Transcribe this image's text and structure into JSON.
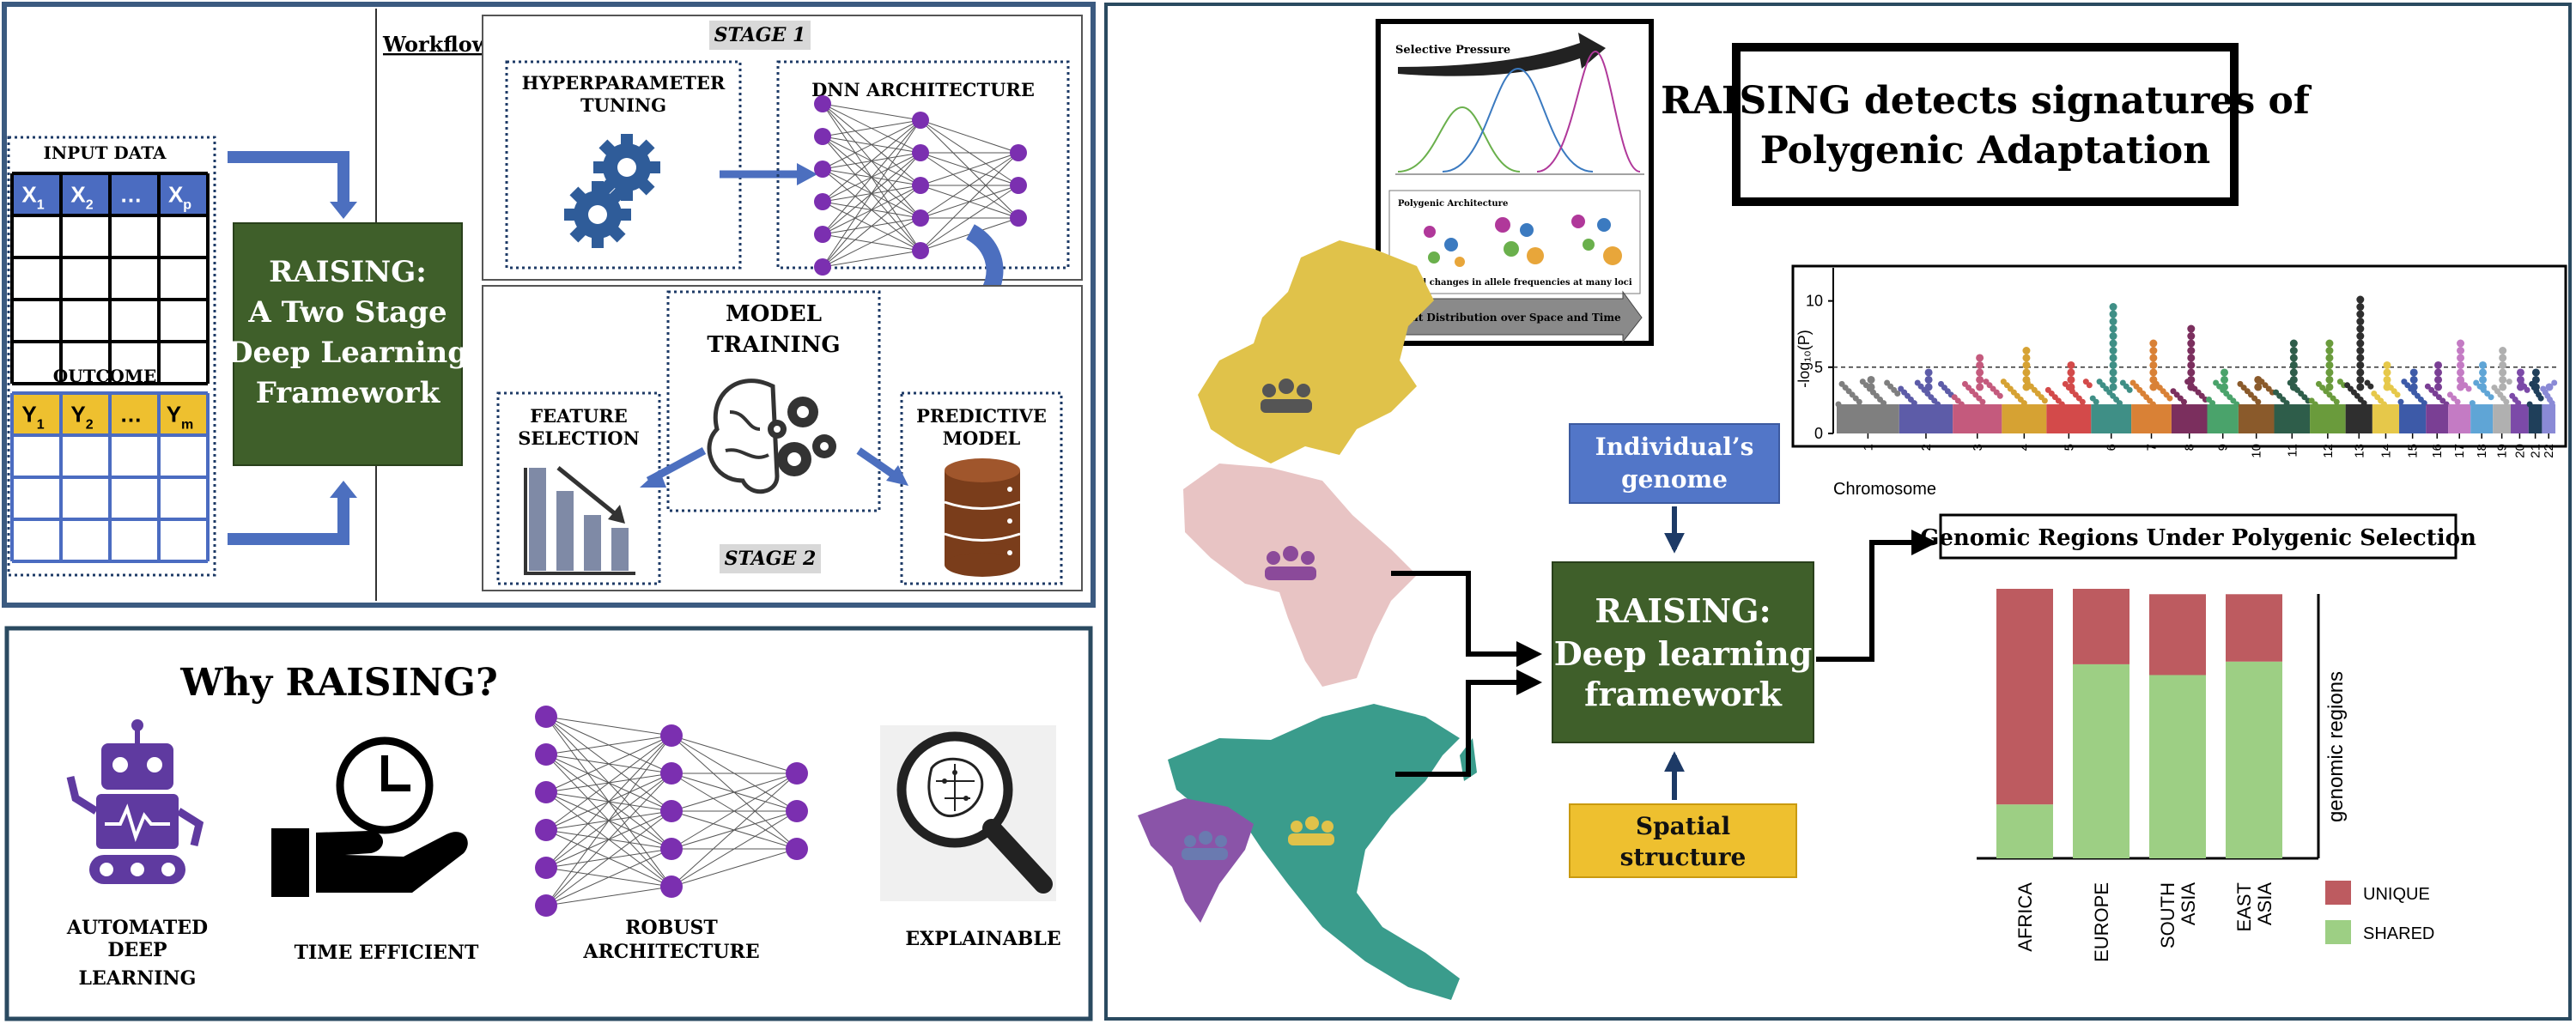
{
  "workflow": {
    "label": "Workflow",
    "input": {
      "title": "INPUT DATA",
      "x_headers": [
        "X",
        "X",
        "…",
        "X"
      ],
      "x_subs": [
        "1",
        "2",
        "",
        "p"
      ],
      "outcome_title": "OUTCOME",
      "y_headers": [
        "Y",
        "Y",
        "…",
        "Y"
      ],
      "y_subs": [
        "1",
        "2",
        "",
        "m"
      ]
    },
    "framework": {
      "line1": "RAISING:",
      "line2": "A Two Stage",
      "line3": "Deep Learning",
      "line4": "Framework"
    },
    "stage1": {
      "label": "STAGE 1",
      "hyper_line1": "HYPERPARAMETER",
      "hyper_line2": "TUNING",
      "dnn": "DNN ARCHITECTURE"
    },
    "stage2": {
      "label": "STAGE 2",
      "model_line1": "MODEL",
      "model_line2": "TRAINING",
      "feature_line1": "FEATURE",
      "feature_line2": "SELECTION",
      "predictive_line1": "PREDICTIVE",
      "predictive_line2": "MODEL"
    }
  },
  "why": {
    "title": "Why RAISING?",
    "items": [
      {
        "line1": "AUTOMATED",
        "line2": "DEEP",
        "line3": "LEARNING",
        "icon": "robot-icon"
      },
      {
        "line1": "TIME EFFICIENT",
        "icon": "clock-hand-icon"
      },
      {
        "line1": "ROBUST",
        "line2": "ARCHITECTURE",
        "icon": "neural-network-icon"
      },
      {
        "line1": "EXPLAINABLE",
        "icon": "magnifier-brain-icon"
      }
    ]
  },
  "right": {
    "headline_line1": "RAISING detects signatures of",
    "headline_line2": "Polygenic Adaptation",
    "inset": {
      "selective_pressure": "Selective Pressure",
      "polygenic_arch": "Polygenic Architecture",
      "allele_text": "Small changes in allele frequencies at many loci",
      "trait_text": "Trait Distribution over Space and Time"
    },
    "genome_line1": "Individual’s",
    "genome_line2": "genome",
    "spatial_line1": "Spatial",
    "spatial_line2": "structure",
    "center_line1": "RAISING:",
    "center_line2": "Deep learning",
    "center_line3": "framework",
    "regions_label": "Genomic Regions Under Polygenic Selection",
    "manhattan": {
      "ylabel": "-log₁₀(P)",
      "yticks": [
        "0",
        "5",
        "10"
      ],
      "xlabel": "Chromosome",
      "chromosomes": [
        "1",
        "2",
        "3",
        "4",
        "5",
        "6",
        "7",
        "8",
        "9",
        "10",
        "11",
        "12",
        "13",
        "14",
        "15",
        "16",
        "17",
        "18",
        "19",
        "20",
        "21",
        "22"
      ],
      "colors": [
        "#7f7f7f",
        "#5d5ca8",
        "#c45a7d",
        "#d6a233",
        "#d34a4a",
        "#3f8f86",
        "#d98136",
        "#7b2f5e",
        "#4aa36b",
        "#8a5a2b",
        "#2e5d4a",
        "#6a9b3c",
        "#2f2f2f",
        "#e6c84a",
        "#3d5aa8",
        "#7a3f94",
        "#c47bc4",
        "#5fa5d6",
        "#b0b0b0",
        "#7c4aa8",
        "#1f3f5a",
        "#8a8ad6"
      ],
      "peaks": [
        4.5,
        4.8,
        6,
        6.5,
        5.2,
        9.8,
        7,
        8.2,
        5,
        4.5,
        6.8,
        7,
        10.5,
        5.5,
        5,
        5.5,
        7.2,
        5.5,
        6.5,
        5,
        4.8,
        4
      ]
    },
    "bars": {
      "ylabel": "genomic regions",
      "categories": [
        "AFRICA",
        "EUROPE",
        "SOUTH ASIA",
        "EAST ASIA"
      ],
      "category_lines": [
        [
          "AFRICA"
        ],
        [
          "EUROPE"
        ],
        [
          "SOUTH",
          "ASIA"
        ],
        [
          "EAST",
          "ASIA"
        ]
      ],
      "legend": [
        {
          "label": "UNIQUE",
          "color": "#bd5b60"
        },
        {
          "label": "SHARED",
          "color": "#9dcf84"
        }
      ]
    }
  },
  "chart_data": [
    {
      "type": "bar",
      "stacked": true,
      "categories": [
        "AFRICA",
        "EUROPE",
        "SOUTH ASIA",
        "EAST ASIA"
      ],
      "series": [
        {
          "name": "SHARED",
          "values": [
            20,
            72,
            68,
            73
          ]
        },
        {
          "name": "UNIQUE",
          "values": [
            80,
            28,
            30,
            25
          ]
        }
      ],
      "ylabel": "genomic regions",
      "ylim": [
        0,
        100
      ],
      "legend": "right"
    }
  ]
}
